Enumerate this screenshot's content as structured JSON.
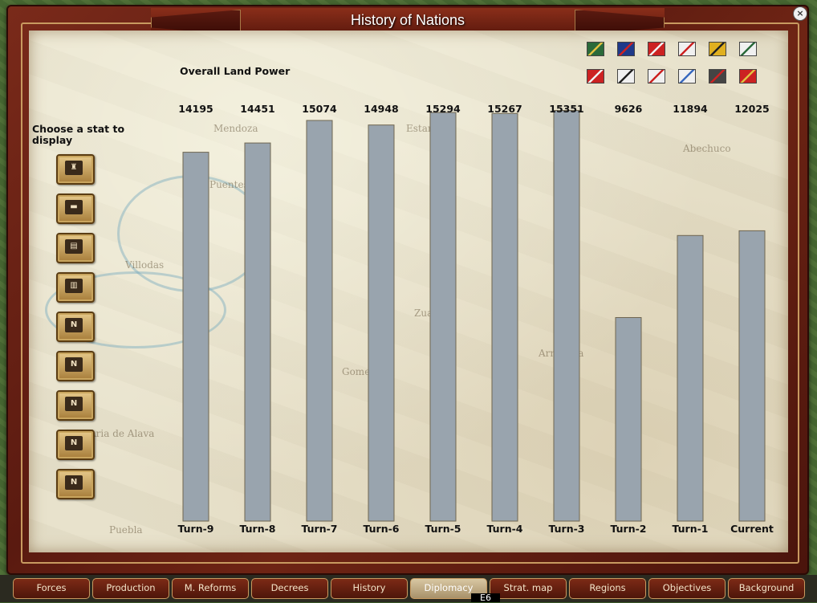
{
  "window": {
    "title": "History of Nations",
    "close_label": "×"
  },
  "sidebar": {
    "title": "Choose a stat to display",
    "buttons": [
      {
        "icon": "officer-icon",
        "glyph": "♜"
      },
      {
        "icon": "cannon-icon",
        "glyph": "▬"
      },
      {
        "icon": "supply-wagon-icon",
        "glyph": "▤"
      },
      {
        "icon": "fortress-icon",
        "glyph": "▥"
      },
      {
        "icon": "naval-infantry-icon",
        "glyph": "N"
      },
      {
        "icon": "naval-artillery-icon",
        "glyph": "N"
      },
      {
        "icon": "naval-transport-icon",
        "glyph": "N"
      },
      {
        "icon": "naval-cannon-icon",
        "glyph": "N"
      },
      {
        "icon": "naval-flag-icon",
        "glyph": "N"
      }
    ]
  },
  "flags": [
    {
      "nation": "portugal-flag",
      "color": "#2a6a3a",
      "accent": "#e0c040"
    },
    {
      "nation": "britain-flag",
      "color": "#1f3a8a",
      "accent": "#cc2222"
    },
    {
      "nation": "spain-flag",
      "color": "#cc2222",
      "accent": "#f0f0f0"
    },
    {
      "nation": "spain-cross-flag",
      "color": "#f0f0f0",
      "accent": "#cc2222"
    },
    {
      "nation": "austria-flag",
      "color": "#e0b020",
      "accent": "#222222"
    },
    {
      "nation": "sweden-flag",
      "color": "#f0f0f0",
      "accent": "#2a6a3a"
    },
    {
      "nation": "denmark-flag",
      "color": "#cc2222",
      "accent": "#f0f0f0"
    },
    {
      "nation": "prussia-flag",
      "color": "#f0f0f0",
      "accent": "#222222"
    },
    {
      "nation": "bavaria-flag",
      "color": "#f0f0f0",
      "accent": "#cc2222"
    },
    {
      "nation": "saxony-flag",
      "color": "#f0f0f0",
      "accent": "#3a6abf"
    },
    {
      "nation": "russia-flag",
      "color": "#444444",
      "accent": "#cc2222"
    },
    {
      "nation": "ottoman-flag",
      "color": "#cc2222",
      "accent": "#e0c040"
    }
  ],
  "chart_data": {
    "type": "bar",
    "title": "Overall Land Power",
    "categories": [
      "Turn-9",
      "Turn-8",
      "Turn-7",
      "Turn-6",
      "Turn-5",
      "Turn-4",
      "Turn-3",
      "Turn-2",
      "Turn-1",
      "Current"
    ],
    "values": [
      14195,
      14451,
      15074,
      14948,
      15294,
      15267,
      15351,
      9626,
      11894,
      12025
    ],
    "bar_color": "#99a4ae",
    "ylim": [
      4000,
      15074
    ]
  },
  "tabs": [
    {
      "label": "Forces",
      "active": false
    },
    {
      "label": "Production",
      "active": false
    },
    {
      "label": "M. Reforms",
      "active": false
    },
    {
      "label": "Decrees",
      "active": false
    },
    {
      "label": "History",
      "active": false
    },
    {
      "label": "Diplomacy",
      "active": true
    },
    {
      "label": "Strat. map",
      "active": false
    },
    {
      "label": "Regions",
      "active": false
    },
    {
      "label": "Objectives",
      "active": false
    },
    {
      "label": "Background",
      "active": false
    }
  ],
  "status": {
    "map_coord": "E6"
  },
  "map_labels": [
    "Mendoza",
    "Puentes",
    "Villodas",
    "Zuazo",
    "Abechuco",
    "Gomecha",
    "Armentia",
    "Aria de Alava",
    "Puebla",
    "Estarrona"
  ]
}
